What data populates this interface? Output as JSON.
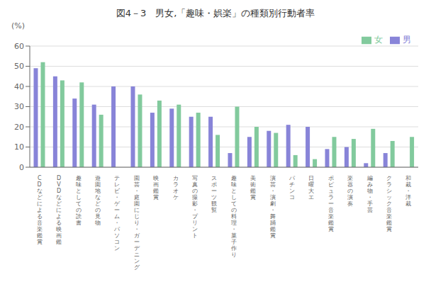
{
  "chart_data": {
    "type": "bar",
    "title": "図4－3　男女,「趣味・娯楽」の種類別行動者率",
    "ylabel": "(%)",
    "categories": [
      "C\nD\nな\nど\nに\nよ\nる\n音\n楽\n鑑\n賞",
      "D\nV\nD\nな\nど\nに\nよ\nる\n映\n画\n鑑",
      "趣\n味\nと\nし\nて\nの\n読\n書",
      "遊\n園\n地\nな\nど\nの\n見\n物",
      "テ\nレ\nビ\n・\nゲ\nー\nム\n・\nパ\nソ\nコ\nン",
      "園\n芸\n・\n庭\n園\nに\nじ\nり\n・\nガ\nー\nデ\nニ\nン\nグ",
      "映\n画\n鑑\n賞",
      "カ\nラ\nオ\nケ",
      "写\n真\nの\n撮\n影\n・\nプ\nリ\nン\nト",
      "ス\nポ\nー\nツ\n観\n覧",
      "趣\n味\nと\nし\nて\nの\n料\n理\n・\n菓\n子\n作\nり",
      "美\n術\n鑑\n賞",
      "演\n芸\n・\n演\n劇\n・\n舞\n踊\n鑑\n賞",
      "パ\nチ\nン\nコ",
      "日\n曜\n大\nエ",
      "ポ\nピ\nュ\nラ\nー\n音\n楽\n鑑\n賞",
      "楽\n器\nの\n演\n奏",
      "編\nみ\n物\n・\n手\n芸",
      "ク\nラ\nシ\nッ\nク\n音\n楽\n鑑\n賞",
      "和\n裁\n・\n洋\n裁"
    ],
    "series": [
      {
        "name": "男",
        "color": "#8884d8",
        "values": [
          49,
          45,
          34,
          31,
          40,
          40,
          27,
          29,
          25,
          25,
          7,
          15,
          18,
          21,
          20,
          9,
          10,
          2,
          7,
          0
        ]
      },
      {
        "name": "女",
        "color": "#82ca9d",
        "values": [
          52,
          43,
          42,
          26,
          0,
          36,
          33,
          31,
          27,
          16,
          30,
          20,
          17,
          6,
          4,
          15,
          14,
          19,
          13,
          15
        ]
      }
    ],
    "ylim": [
      0,
      60
    ],
    "yticks": [
      0,
      10,
      20,
      30,
      40,
      50,
      60
    ],
    "grid": true,
    "legend": "upper right"
  }
}
